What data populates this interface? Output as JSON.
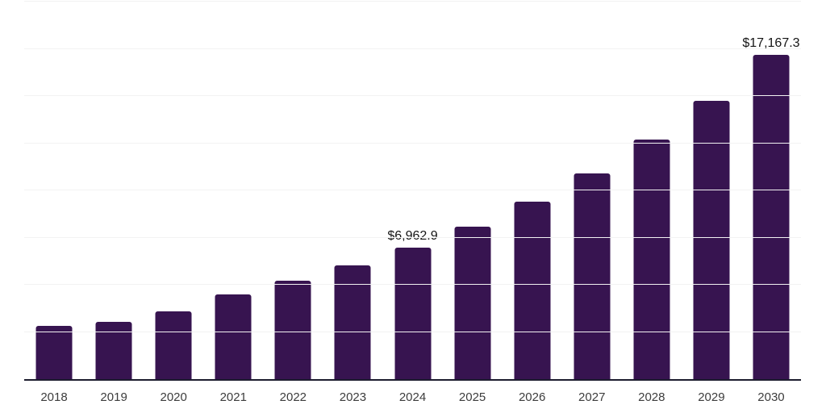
{
  "chart_data": {
    "type": "bar",
    "title": "",
    "xlabel": "",
    "ylabel": "",
    "categories": [
      "2018",
      "2019",
      "2020",
      "2021",
      "2022",
      "2023",
      "2024",
      "2025",
      "2026",
      "2027",
      "2028",
      "2029",
      "2030"
    ],
    "values": [
      2815,
      3030,
      3590,
      4480,
      5205,
      6015,
      6962.9,
      8095,
      9400,
      10915,
      12705,
      14765,
      17167.3
    ],
    "value_labels": [
      "",
      "",
      "",
      "",
      "",
      "",
      "$6,962.9",
      "",
      "",
      "",
      "",
      "",
      "$17,167.3"
    ],
    "ylim": [
      0,
      20000
    ],
    "grid_step": 2500,
    "grid": true,
    "legend": false,
    "y_tick_labels_visible": false
  },
  "colors": {
    "bar": "#371450",
    "grid": "#f2f2f2",
    "axis": "#1c1c2e",
    "value_label": "#141414",
    "tick_label": "#3c3c3c",
    "background": "#ffffff"
  }
}
